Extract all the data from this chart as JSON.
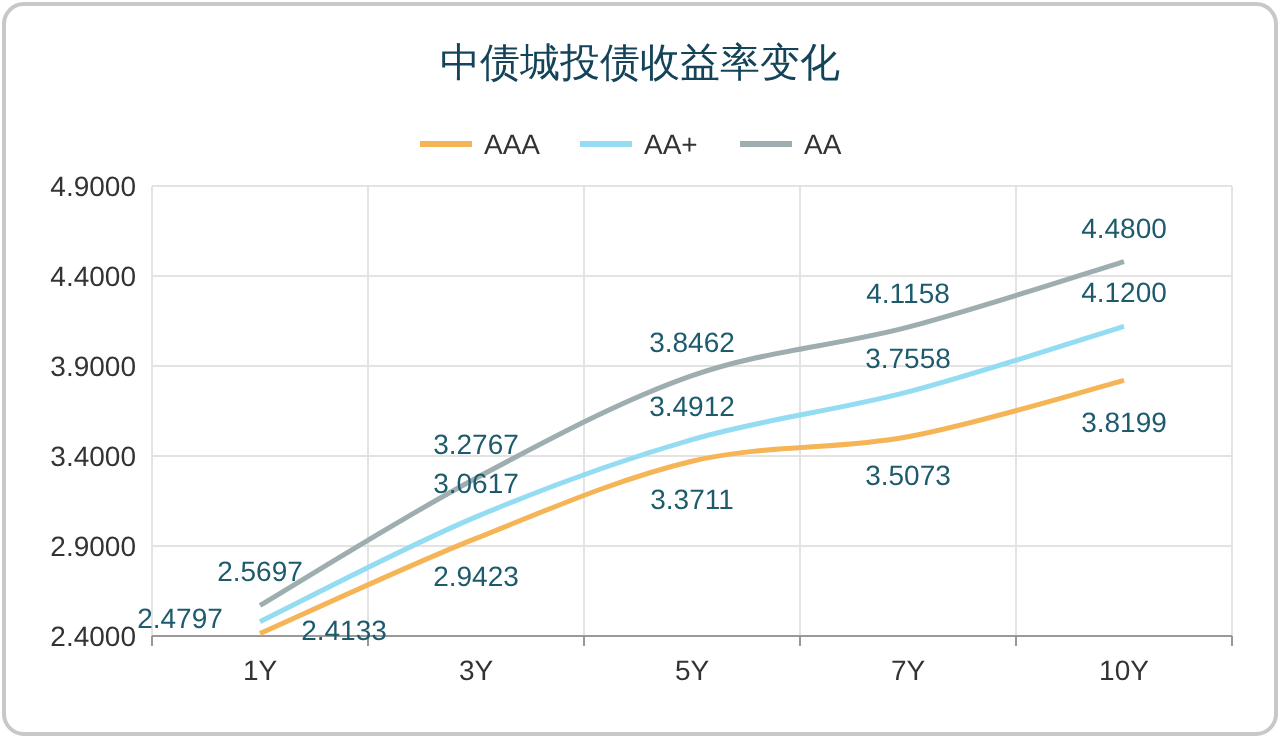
{
  "chart_data": {
    "type": "line",
    "title": "中债城投债收益率变化",
    "categories": [
      "1Y",
      "3Y",
      "5Y",
      "7Y",
      "10Y"
    ],
    "series": [
      {
        "name": "AAA",
        "color": "#f5b557",
        "values": [
          2.4133,
          2.9423,
          3.3711,
          3.5073,
          3.8199
        ],
        "value_labels": [
          "2.4133",
          "2.9423",
          "3.3711",
          "3.5073",
          "3.8199"
        ]
      },
      {
        "name": "AA+",
        "color": "#94dcf2",
        "values": [
          2.4797,
          3.0617,
          3.4912,
          3.7558,
          4.12
        ],
        "value_labels": [
          "2.4797",
          "3.0617",
          "3.4912",
          "3.7558",
          "4.1200"
        ]
      },
      {
        "name": "AA",
        "color": "#9eaeb0",
        "values": [
          2.5697,
          3.2767,
          3.8462,
          4.1158,
          4.48
        ],
        "value_labels": [
          "2.5697",
          "3.2767",
          "3.8462",
          "4.1158",
          "4.4800"
        ]
      }
    ],
    "ylim": [
      2.4,
      4.9
    ],
    "yticks": [
      {
        "value": 2.4,
        "label": "2.4000"
      },
      {
        "value": 2.9,
        "label": "2.9000"
      },
      {
        "value": 3.4,
        "label": "3.4000"
      },
      {
        "value": 3.9,
        "label": "3.9000"
      },
      {
        "value": 4.4,
        "label": "4.4000"
      },
      {
        "value": 4.9,
        "label": "4.9000"
      }
    ],
    "grid": true,
    "legend": "top",
    "marker": "none",
    "line_style": "solid"
  }
}
